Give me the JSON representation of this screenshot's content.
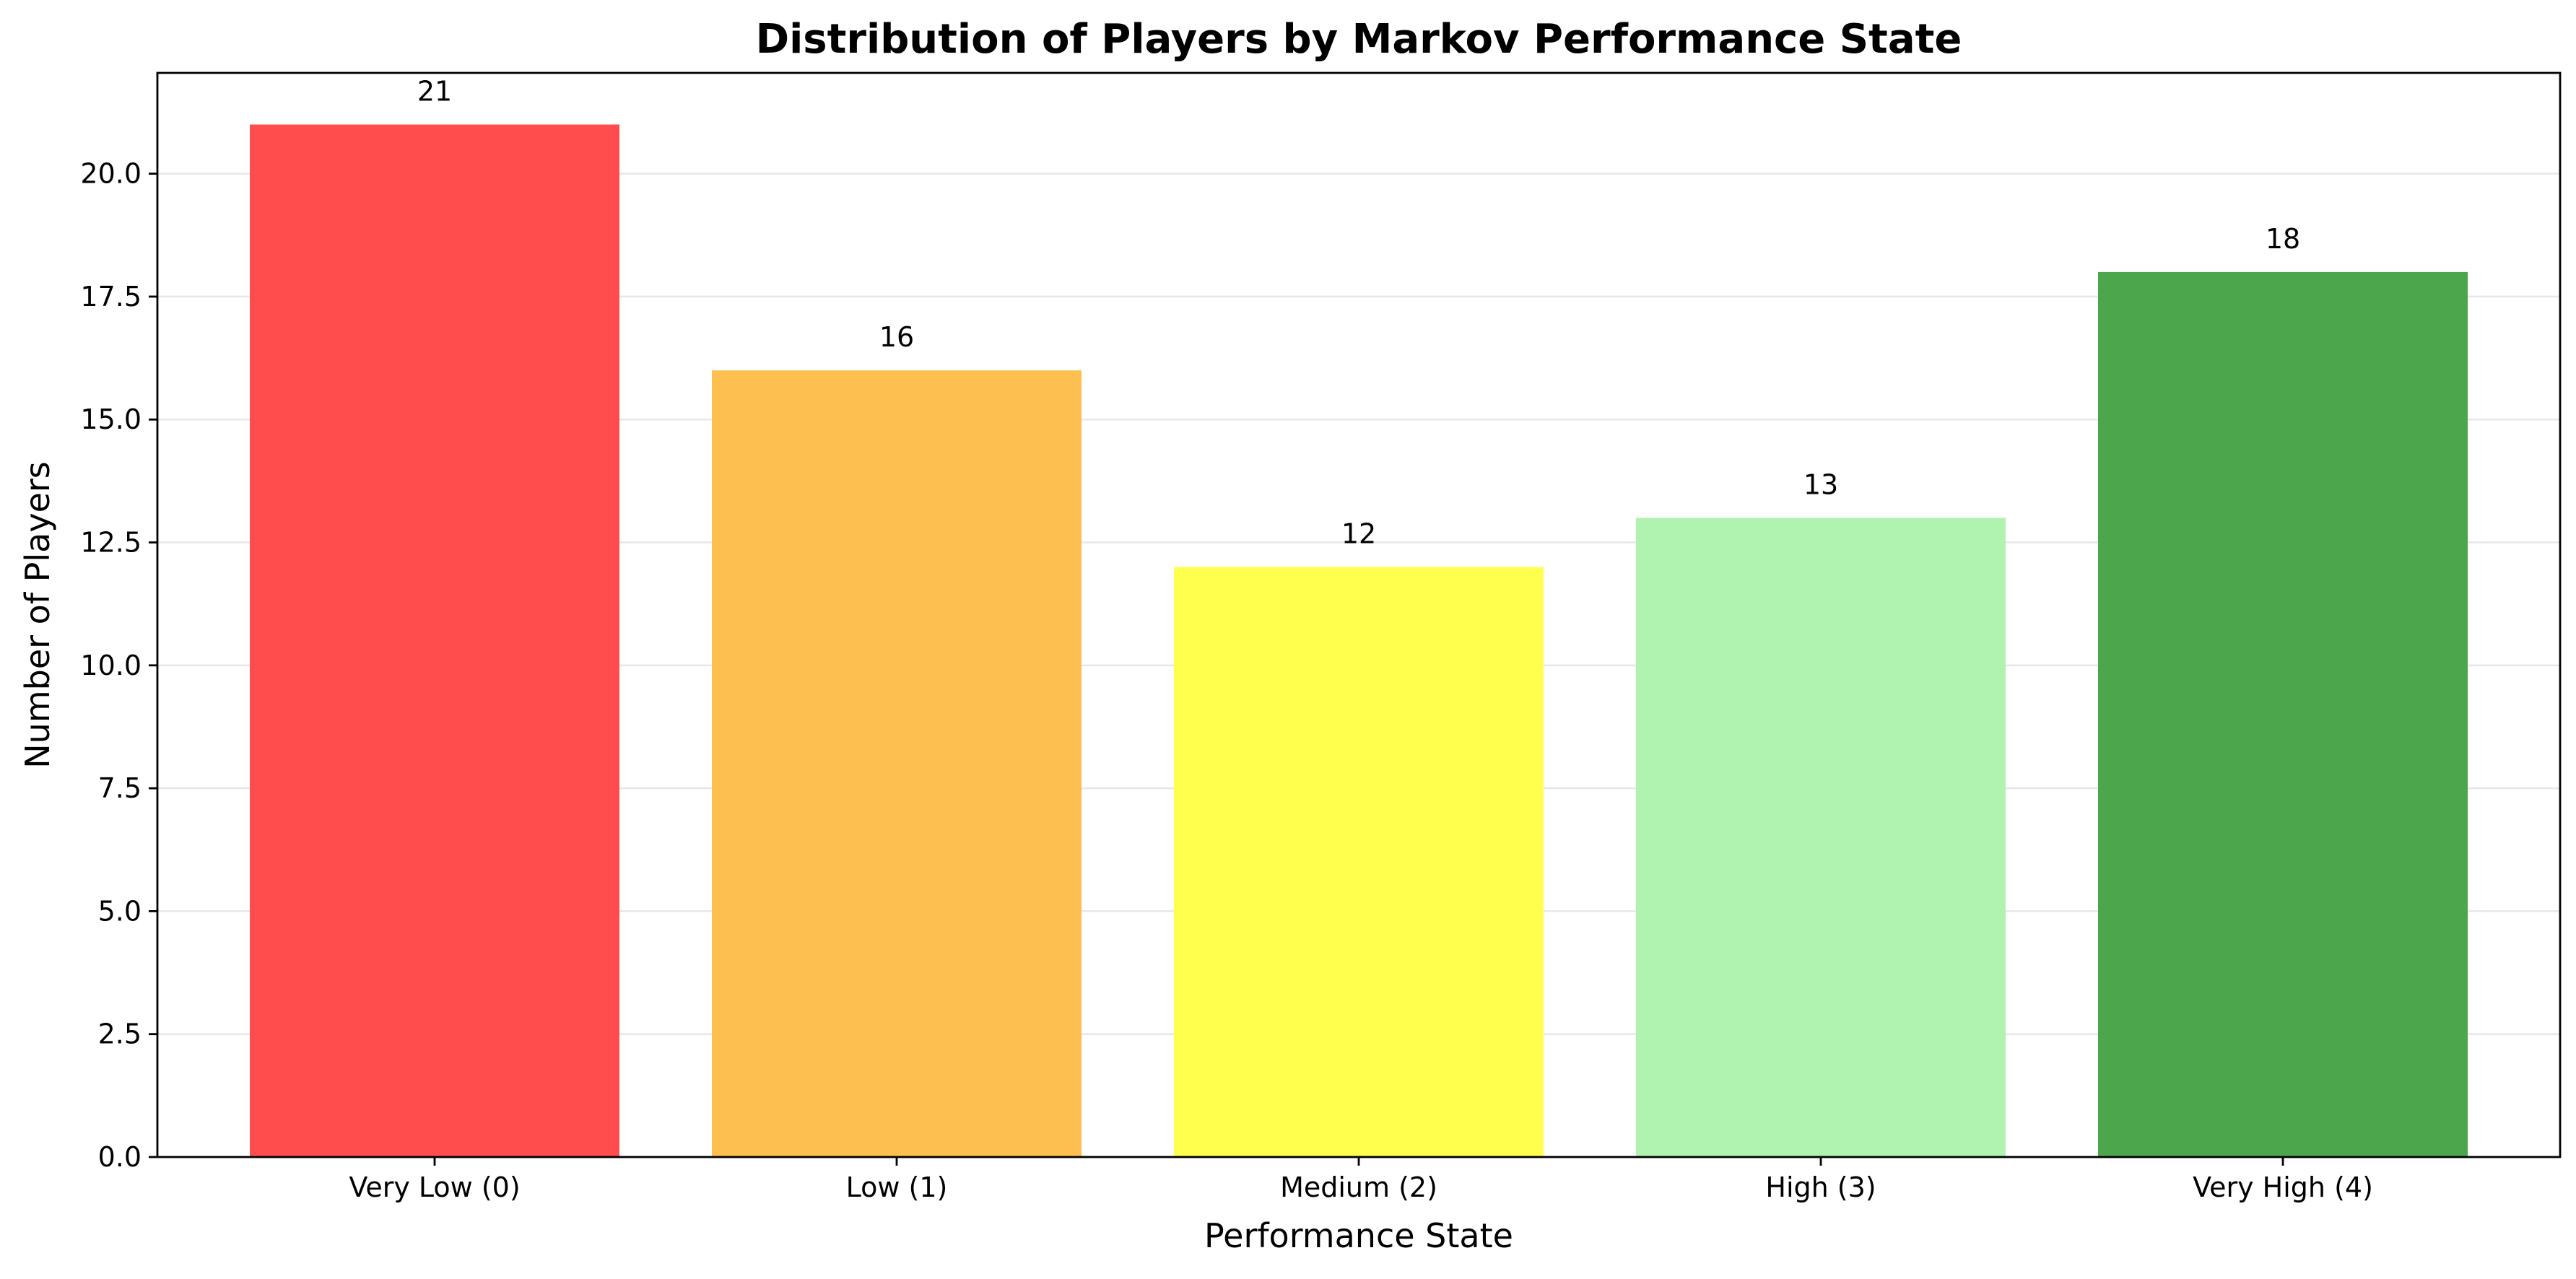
{
  "chart_data": {
    "type": "bar",
    "title": "Distribution of Players by Markov Performance State",
    "xlabel": "Performance State",
    "ylabel": "Number of Players",
    "categories": [
      "Very Low (0)",
      "Low (1)",
      "Medium (2)",
      "High (3)",
      "Very High (4)"
    ],
    "values": [
      21,
      16,
      12,
      13,
      18
    ],
    "value_labels": [
      "21",
      "16",
      "12",
      "13",
      "18"
    ],
    "colors": [
      "#ff4d4d",
      "#fdbf50",
      "#ffff4d",
      "#b0f3b0",
      "#4ca64c"
    ],
    "ylim": [
      0,
      22.05
    ],
    "yticks": [
      0,
      2.5,
      5,
      7.5,
      10,
      12.5,
      15,
      17.5,
      20
    ],
    "ytick_labels": [
      "0.0",
      "2.5",
      "5.0",
      "7.5",
      "10.0",
      "12.5",
      "15.0",
      "17.5",
      "20.0"
    ],
    "grid": "y-axis",
    "legend": "none"
  }
}
